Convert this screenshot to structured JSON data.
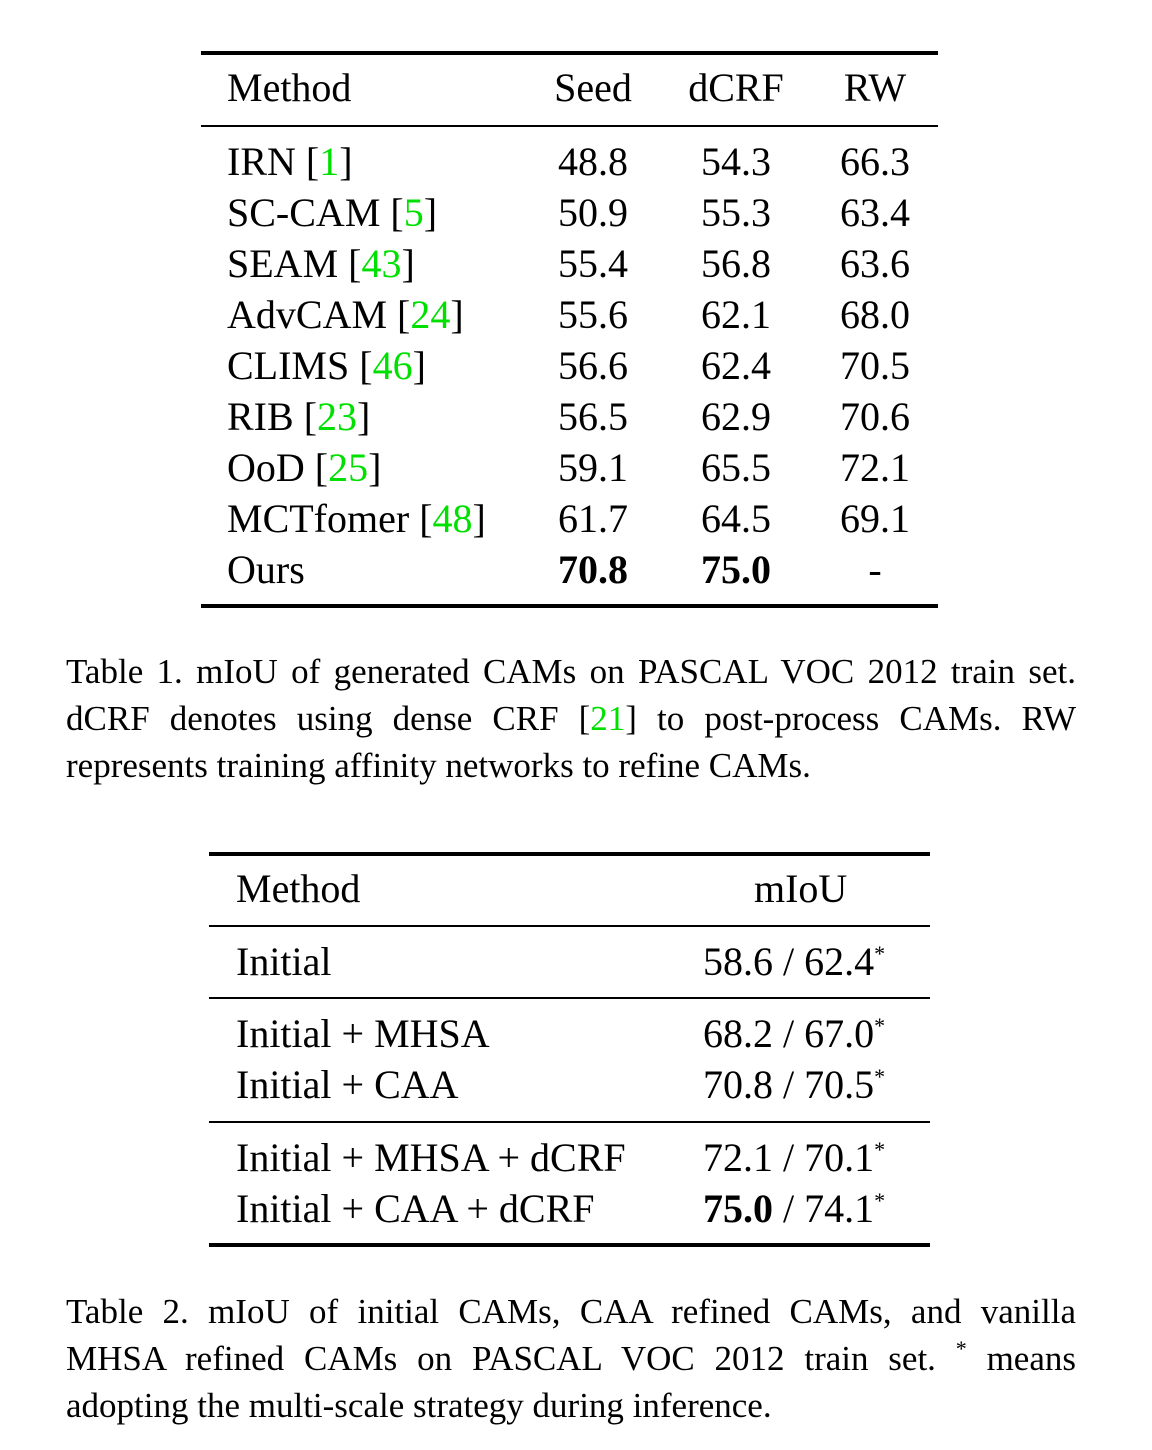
{
  "table1": {
    "headers": [
      "Method",
      "Seed",
      "dCRF",
      "RW"
    ],
    "rows": [
      {
        "method": "IRN",
        "ref": "1",
        "seed": "48.8",
        "dcrf": "54.3",
        "rw": "66.3"
      },
      {
        "method": "SC-CAM",
        "ref": "5",
        "seed": "50.9",
        "dcrf": "55.3",
        "rw": "63.4"
      },
      {
        "method": "SEAM",
        "ref": "43",
        "seed": "55.4",
        "dcrf": "56.8",
        "rw": "63.6"
      },
      {
        "method": "AdvCAM",
        "ref": "24",
        "seed": "55.6",
        "dcrf": "62.1",
        "rw": "68.0"
      },
      {
        "method": "CLIMS",
        "ref": "46",
        "seed": "56.6",
        "dcrf": "62.4",
        "rw": "70.5"
      },
      {
        "method": "RIB",
        "ref": "23",
        "seed": "56.5",
        "dcrf": "62.9",
        "rw": "70.6"
      },
      {
        "method": "OoD",
        "ref": "25",
        "seed": "59.1",
        "dcrf": "65.5",
        "rw": "72.1"
      },
      {
        "method": "MCTfomer",
        "ref": "48",
        "seed": "61.7",
        "dcrf": "64.5",
        "rw": "69.1"
      },
      {
        "method": "Ours",
        "ref": null,
        "seed": "70.8",
        "dcrf": "75.0",
        "rw": "-"
      }
    ],
    "caption": {
      "part1": "Table 1.  mIoU of generated CAMs on PASCAL VOC 2012 train set.  dCRF denotes using dense CRF [",
      "ref": "21",
      "part2": "] to post-process CAMs. RW represents training affinity networks to refine CAMs."
    }
  },
  "table2": {
    "headers": [
      "Method",
      "mIoU"
    ],
    "rows": [
      {
        "method": "Initial",
        "single": "58.6",
        "multi": "62.4"
      },
      {
        "method": "Initial + MHSA",
        "single": "68.2",
        "multi": "67.0"
      },
      {
        "method": "Initial + CAA",
        "single": "70.8",
        "multi": "70.5"
      },
      {
        "method": "Initial + MHSA + dCRF",
        "single": "72.1",
        "multi": "70.1"
      },
      {
        "method": "Initial + CAA + dCRF",
        "single": "75.0",
        "multi": "74.1"
      }
    ],
    "separator": " / ",
    "star": "*",
    "caption": {
      "part1": "Table 2.  mIoU of initial CAMs, CAA refined CAMs, and vanilla MHSA refined CAMs on PASCAL VOC 2012 train set. ",
      "star": "*",
      "part2": " means adopting the multi-scale strategy during inference."
    }
  },
  "colors": {
    "citation": "#00e000",
    "text": "#000000"
  }
}
